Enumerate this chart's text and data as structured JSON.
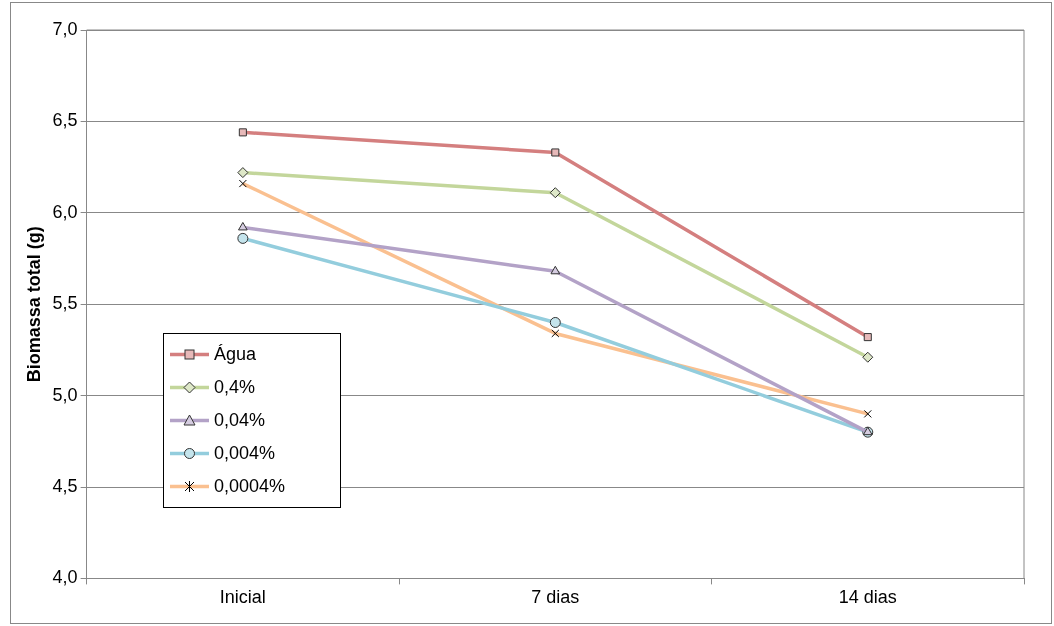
{
  "chart_data": {
    "type": "line",
    "ylabel": "Biomassa total (g)",
    "categories": [
      "Inicial",
      "7 dias",
      "14 dias"
    ],
    "series": [
      {
        "name": "Água",
        "color": "#d47f7f",
        "marker": "square",
        "values": [
          6.44,
          6.33,
          5.32
        ]
      },
      {
        "name": "0,4%",
        "color": "#c3d69b",
        "marker": "diamond",
        "values": [
          6.22,
          6.11,
          5.21
        ]
      },
      {
        "name": "0,04%",
        "color": "#b3a2c7",
        "marker": "triangle",
        "values": [
          5.92,
          5.68,
          4.8
        ]
      },
      {
        "name": "0,004%",
        "color": "#93cddd",
        "marker": "circle",
        "values": [
          5.86,
          5.4,
          4.8
        ]
      },
      {
        "name": "0,0004%",
        "color": "#fac090",
        "marker": "cross",
        "values": [
          6.16,
          5.34,
          4.9
        ]
      }
    ],
    "ylim": [
      4,
      7
    ],
    "yticks": [
      {
        "value": 4,
        "label": "4,0"
      },
      {
        "value": 4.5,
        "label": "4,5"
      },
      {
        "value": 5,
        "label": "5,0"
      },
      {
        "value": 5.5,
        "label": "5,5"
      },
      {
        "value": 6,
        "label": "6,0"
      },
      {
        "value": 6.5,
        "label": "6,5"
      },
      {
        "value": 7,
        "label": "7,0"
      }
    ],
    "grid": "y",
    "legend": "left",
    "line_style": "solid"
  }
}
